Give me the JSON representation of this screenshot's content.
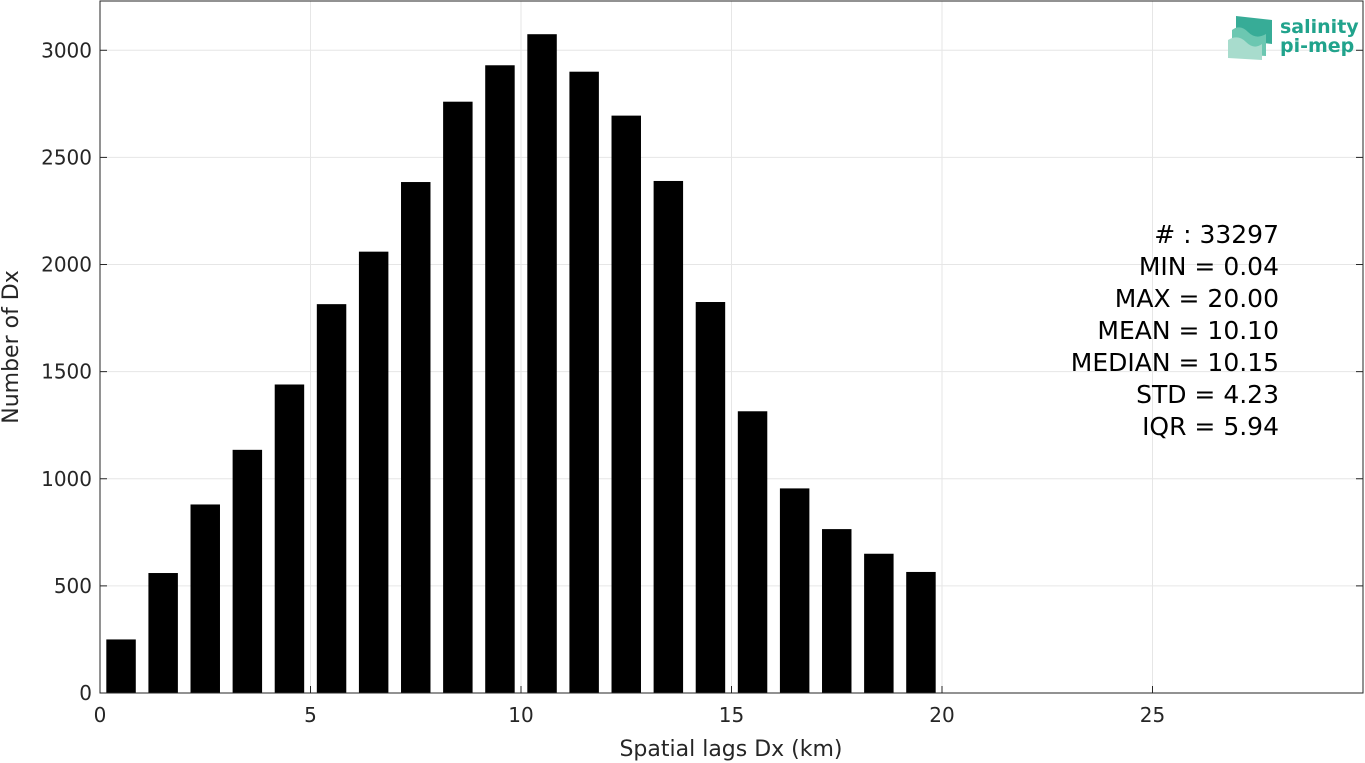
{
  "chart_data": {
    "type": "bar",
    "title": "",
    "xlabel": "Spatial lags Dx (km)",
    "ylabel": "Number of Dx",
    "xlim": [
      0,
      30
    ],
    "ylim": [
      0,
      3230
    ],
    "x_ticks": [
      0,
      5,
      10,
      15,
      20,
      25
    ],
    "y_ticks": [
      0,
      500,
      1000,
      1500,
      2000,
      2500,
      3000
    ],
    "bin_width": 1,
    "bar_width": 0.7,
    "grid": true,
    "bar_color": "#000000",
    "x": [
      0.5,
      1.5,
      2.5,
      3.5,
      4.5,
      5.5,
      6.5,
      7.5,
      8.5,
      9.5,
      10.5,
      11.5,
      12.5,
      13.5,
      14.5,
      15.5,
      16.5,
      17.5,
      18.5,
      19.5
    ],
    "values": [
      250,
      560,
      880,
      1135,
      1440,
      1815,
      2060,
      2385,
      2760,
      2930,
      3075,
      2900,
      2695,
      2390,
      1825,
      1315,
      955,
      765,
      650,
      565
    ],
    "annotation": [
      "# : 33297",
      "MIN = 0.04",
      "MAX =  20.00",
      "MEAN = 10.10",
      "MEDIAN = 10.15",
      "STD = 4.23",
      "IQR = 5.94"
    ]
  },
  "logo": {
    "line1": "salinity",
    "line2": "pi-mep",
    "color": "#21a38c"
  }
}
